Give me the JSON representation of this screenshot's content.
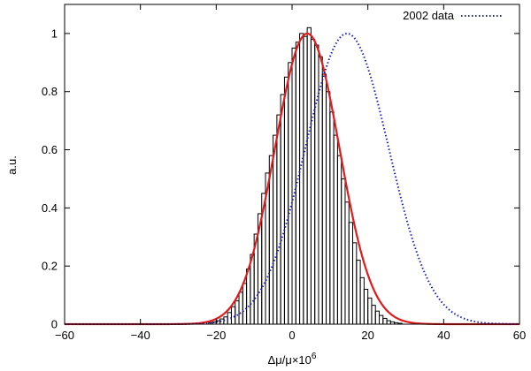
{
  "chart_data": {
    "type": "bar",
    "xlabel": "Δμ/μ×10",
    "xlabel_superscript": "6",
    "ylabel": "a.u.",
    "xlim": [
      -60,
      60
    ],
    "ylim": [
      0,
      1.1
    ],
    "xticks": [
      -60,
      -40,
      -20,
      0,
      20,
      40,
      60
    ],
    "xtick_labels": [
      "−60",
      "−40",
      "−20",
      "0",
      "20",
      "40",
      "60"
    ],
    "yticks": [
      0,
      0.2,
      0.4,
      0.6,
      0.8,
      1.0
    ],
    "ytick_labels": [
      "0",
      "0.2",
      "0.4",
      "0.6",
      "0.8",
      "1"
    ],
    "grid": false,
    "legend_position": "top-right",
    "histogram": {
      "bin_width": 1,
      "bin_starts": [
        -22,
        -21,
        -20,
        -19,
        -18,
        -17,
        -16,
        -15,
        -14,
        -13,
        -12,
        -11,
        -10,
        -9,
        -8,
        -7,
        -6,
        -5,
        -4,
        -3,
        -2,
        -1,
        0,
        1,
        2,
        3,
        4,
        5,
        6,
        7,
        8,
        9,
        10,
        11,
        12,
        13,
        14,
        15,
        16,
        17,
        18,
        19,
        20,
        21,
        22,
        23,
        24,
        25,
        26,
        27,
        28
      ],
      "values": [
        0.005,
        0.008,
        0.012,
        0.018,
        0.025,
        0.04,
        0.06,
        0.08,
        0.11,
        0.14,
        0.19,
        0.24,
        0.31,
        0.38,
        0.45,
        0.52,
        0.58,
        0.65,
        0.72,
        0.79,
        0.85,
        0.9,
        0.95,
        0.97,
        1.0,
        0.99,
        1.02,
        0.98,
        0.96,
        0.92,
        0.86,
        0.8,
        0.73,
        0.65,
        0.58,
        0.5,
        0.42,
        0.35,
        0.28,
        0.22,
        0.16,
        0.12,
        0.09,
        0.065,
        0.045,
        0.03,
        0.02,
        0.012,
        0.008,
        0.005,
        0.003
      ]
    },
    "series": [
      {
        "type": "line",
        "style": "solid",
        "color": "#e31a1c",
        "mu": 4,
        "sigma": 8.5
      },
      {
        "name": "2002 data",
        "type": "line",
        "style": "dotted",
        "color": "#1f1fbf",
        "mu": 14.5,
        "sigma": 11
      }
    ]
  }
}
